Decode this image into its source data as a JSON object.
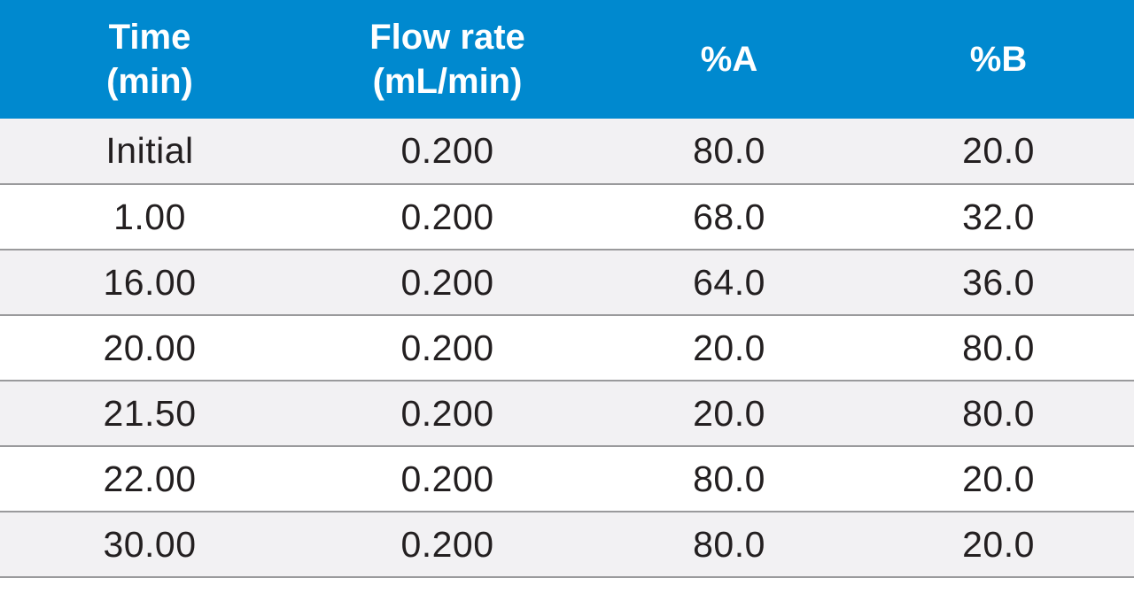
{
  "table": {
    "headers": [
      {
        "line1": "Time",
        "line2": "(min)"
      },
      {
        "line1": "Flow rate",
        "line2": "(mL/min)"
      },
      {
        "line1": "%A",
        "line2": ""
      },
      {
        "line1": "%B",
        "line2": ""
      }
    ],
    "rows": [
      [
        "Initial",
        "0.200",
        "80.0",
        "20.0"
      ],
      [
        "1.00",
        "0.200",
        "68.0",
        "32.0"
      ],
      [
        "16.00",
        "0.200",
        "64.0",
        "36.0"
      ],
      [
        "20.00",
        "0.200",
        "20.0",
        "80.0"
      ],
      [
        "21.50",
        "0.200",
        "20.0",
        "80.0"
      ],
      [
        "22.00",
        "0.200",
        "80.0",
        "20.0"
      ],
      [
        "30.00",
        "0.200",
        "80.0",
        "20.0"
      ]
    ]
  },
  "colors": {
    "header_bg": "#0089cf",
    "header_text": "#ffffff",
    "row_shaded": "#f2f1f3",
    "row_plain": "#ffffff",
    "divider": "#9a9a9c",
    "cell_text": "#231f20"
  }
}
